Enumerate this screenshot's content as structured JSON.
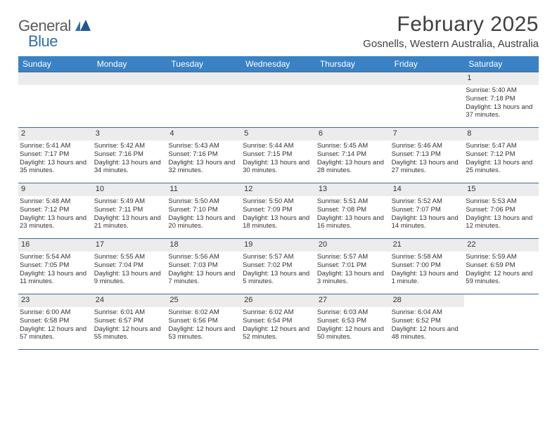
{
  "logo": {
    "general": "General",
    "blue": "Blue"
  },
  "title": "February 2025",
  "location": "Gosnells, Western Australia, Australia",
  "colors": {
    "header_bg": "#3a82c4",
    "rule": "#3a6a9a",
    "daynum_bg": "#ececec",
    "text": "#333333",
    "logo_general": "#5a5a5a",
    "logo_blue": "#2f6fa8"
  },
  "weekdays": [
    "Sunday",
    "Monday",
    "Tuesday",
    "Wednesday",
    "Thursday",
    "Friday",
    "Saturday"
  ],
  "weeks": [
    [
      {
        "n": "",
        "empty": true
      },
      {
        "n": "",
        "empty": true
      },
      {
        "n": "",
        "empty": true
      },
      {
        "n": "",
        "empty": true
      },
      {
        "n": "",
        "empty": true
      },
      {
        "n": "",
        "empty": true
      },
      {
        "n": "1",
        "sunrise": "Sunrise: 5:40 AM",
        "sunset": "Sunset: 7:18 PM",
        "daylight": "Daylight: 13 hours and 37 minutes."
      }
    ],
    [
      {
        "n": "2",
        "sunrise": "Sunrise: 5:41 AM",
        "sunset": "Sunset: 7:17 PM",
        "daylight": "Daylight: 13 hours and 35 minutes."
      },
      {
        "n": "3",
        "sunrise": "Sunrise: 5:42 AM",
        "sunset": "Sunset: 7:16 PM",
        "daylight": "Daylight: 13 hours and 34 minutes."
      },
      {
        "n": "4",
        "sunrise": "Sunrise: 5:43 AM",
        "sunset": "Sunset: 7:16 PM",
        "daylight": "Daylight: 13 hours and 32 minutes."
      },
      {
        "n": "5",
        "sunrise": "Sunrise: 5:44 AM",
        "sunset": "Sunset: 7:15 PM",
        "daylight": "Daylight: 13 hours and 30 minutes."
      },
      {
        "n": "6",
        "sunrise": "Sunrise: 5:45 AM",
        "sunset": "Sunset: 7:14 PM",
        "daylight": "Daylight: 13 hours and 28 minutes."
      },
      {
        "n": "7",
        "sunrise": "Sunrise: 5:46 AM",
        "sunset": "Sunset: 7:13 PM",
        "daylight": "Daylight: 13 hours and 27 minutes."
      },
      {
        "n": "8",
        "sunrise": "Sunrise: 5:47 AM",
        "sunset": "Sunset: 7:12 PM",
        "daylight": "Daylight: 13 hours and 25 minutes."
      }
    ],
    [
      {
        "n": "9",
        "sunrise": "Sunrise: 5:48 AM",
        "sunset": "Sunset: 7:12 PM",
        "daylight": "Daylight: 13 hours and 23 minutes."
      },
      {
        "n": "10",
        "sunrise": "Sunrise: 5:49 AM",
        "sunset": "Sunset: 7:11 PM",
        "daylight": "Daylight: 13 hours and 21 minutes."
      },
      {
        "n": "11",
        "sunrise": "Sunrise: 5:50 AM",
        "sunset": "Sunset: 7:10 PM",
        "daylight": "Daylight: 13 hours and 20 minutes."
      },
      {
        "n": "12",
        "sunrise": "Sunrise: 5:50 AM",
        "sunset": "Sunset: 7:09 PM",
        "daylight": "Daylight: 13 hours and 18 minutes."
      },
      {
        "n": "13",
        "sunrise": "Sunrise: 5:51 AM",
        "sunset": "Sunset: 7:08 PM",
        "daylight": "Daylight: 13 hours and 16 minutes."
      },
      {
        "n": "14",
        "sunrise": "Sunrise: 5:52 AM",
        "sunset": "Sunset: 7:07 PM",
        "daylight": "Daylight: 13 hours and 14 minutes."
      },
      {
        "n": "15",
        "sunrise": "Sunrise: 5:53 AM",
        "sunset": "Sunset: 7:06 PM",
        "daylight": "Daylight: 13 hours and 12 minutes."
      }
    ],
    [
      {
        "n": "16",
        "sunrise": "Sunrise: 5:54 AM",
        "sunset": "Sunset: 7:05 PM",
        "daylight": "Daylight: 13 hours and 11 minutes."
      },
      {
        "n": "17",
        "sunrise": "Sunrise: 5:55 AM",
        "sunset": "Sunset: 7:04 PM",
        "daylight": "Daylight: 13 hours and 9 minutes."
      },
      {
        "n": "18",
        "sunrise": "Sunrise: 5:56 AM",
        "sunset": "Sunset: 7:03 PM",
        "daylight": "Daylight: 13 hours and 7 minutes."
      },
      {
        "n": "19",
        "sunrise": "Sunrise: 5:57 AM",
        "sunset": "Sunset: 7:02 PM",
        "daylight": "Daylight: 13 hours and 5 minutes."
      },
      {
        "n": "20",
        "sunrise": "Sunrise: 5:57 AM",
        "sunset": "Sunset: 7:01 PM",
        "daylight": "Daylight: 13 hours and 3 minutes."
      },
      {
        "n": "21",
        "sunrise": "Sunrise: 5:58 AM",
        "sunset": "Sunset: 7:00 PM",
        "daylight": "Daylight: 13 hours and 1 minute."
      },
      {
        "n": "22",
        "sunrise": "Sunrise: 5:59 AM",
        "sunset": "Sunset: 6:59 PM",
        "daylight": "Daylight: 12 hours and 59 minutes."
      }
    ],
    [
      {
        "n": "23",
        "sunrise": "Sunrise: 6:00 AM",
        "sunset": "Sunset: 6:58 PM",
        "daylight": "Daylight: 12 hours and 57 minutes."
      },
      {
        "n": "24",
        "sunrise": "Sunrise: 6:01 AM",
        "sunset": "Sunset: 6:57 PM",
        "daylight": "Daylight: 12 hours and 55 minutes."
      },
      {
        "n": "25",
        "sunrise": "Sunrise: 6:02 AM",
        "sunset": "Sunset: 6:56 PM",
        "daylight": "Daylight: 12 hours and 53 minutes."
      },
      {
        "n": "26",
        "sunrise": "Sunrise: 6:02 AM",
        "sunset": "Sunset: 6:54 PM",
        "daylight": "Daylight: 12 hours and 52 minutes."
      },
      {
        "n": "27",
        "sunrise": "Sunrise: 6:03 AM",
        "sunset": "Sunset: 6:53 PM",
        "daylight": "Daylight: 12 hours and 50 minutes."
      },
      {
        "n": "28",
        "sunrise": "Sunrise: 6:04 AM",
        "sunset": "Sunset: 6:52 PM",
        "daylight": "Daylight: 12 hours and 48 minutes."
      },
      {
        "n": "",
        "empty": true,
        "nobar": true
      }
    ]
  ]
}
